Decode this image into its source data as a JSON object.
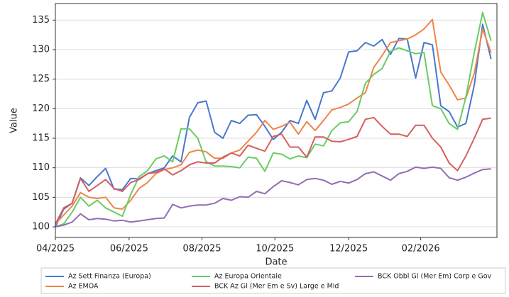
{
  "chart_data": {
    "type": "line",
    "xlabel": "Date",
    "ylabel": "Value",
    "x": [
      0,
      1,
      2,
      3,
      4,
      5,
      6,
      7,
      8,
      9,
      10,
      11,
      12,
      13,
      14,
      15,
      16,
      17,
      18,
      19,
      20,
      21,
      22,
      23,
      24,
      25,
      26,
      27,
      28,
      29,
      30,
      31,
      32,
      33,
      34,
      35,
      36,
      37,
      38,
      39,
      40,
      41,
      42,
      43,
      44,
      45,
      46,
      47,
      48,
      49,
      50,
      51,
      52
    ],
    "xlim": [
      0,
      52.7
    ],
    "xticks": [
      {
        "value": 0,
        "label": "04/2025"
      },
      {
        "value": 8.8,
        "label": "06/2025"
      },
      {
        "value": 17.5,
        "label": "08/2025"
      },
      {
        "value": 26.2,
        "label": "10/2025"
      },
      {
        "value": 35,
        "label": "12/2025"
      },
      {
        "value": 43.6,
        "label": "02/2026"
      }
    ],
    "ylim": [
      98.2,
      137.8
    ],
    "yticks": [
      100,
      105,
      110,
      115,
      120,
      125,
      130,
      135
    ],
    "grid": true,
    "series": [
      {
        "name": "Az Sett Finanza (Europa)",
        "color": "#4878d0",
        "values": [
          100,
          103,
          104,
          108.3,
          107,
          108.5,
          109.9,
          106.4,
          106.3,
          108.2,
          108.1,
          109,
          109.5,
          110,
          112,
          111,
          118.5,
          121,
          121.3,
          116,
          115,
          118,
          117.5,
          118.9,
          119,
          117,
          114.8,
          116,
          118,
          117.5,
          121.4,
          118.2,
          122.7,
          123,
          125.2,
          129.6,
          129.8,
          131.2,
          130.6,
          131.7,
          129.2,
          131.9,
          131.8,
          125.2,
          131.2,
          130.8,
          120.5,
          119.5,
          116.9,
          117.5,
          124,
          134.3,
          128.4
        ]
      },
      {
        "name": "Az EMOA",
        "color": "#ee854a",
        "values": [
          100.5,
          102,
          103.5,
          105.8,
          105,
          104.8,
          105,
          103.2,
          103,
          104.5,
          106.5,
          107.5,
          109,
          109.7,
          110,
          110.5,
          112.6,
          113,
          112.7,
          111.6,
          111.6,
          112.5,
          113,
          114.5,
          116,
          118,
          116.5,
          117,
          117.7,
          115.7,
          117.8,
          116.3,
          118,
          119.8,
          120.2,
          120.8,
          121.8,
          122.7,
          127,
          129,
          131.2,
          131.5,
          131.8,
          132.5,
          133.5,
          135.1,
          126.2,
          124,
          121.5,
          121.8,
          126,
          133.5,
          129.5
        ]
      },
      {
        "name": "Az Europa Orientale",
        "color": "#6acc64",
        "values": [
          100,
          100.5,
          102.5,
          105,
          103.5,
          104.5,
          103.2,
          102.5,
          101.8,
          105.5,
          108.5,
          109.5,
          111.5,
          112,
          111,
          116.6,
          116.6,
          115,
          111,
          110.3,
          110.3,
          110.2,
          110,
          111.8,
          111.6,
          109.4,
          112.5,
          112.3,
          111.5,
          112,
          111.7,
          114,
          113.7,
          116.3,
          117.6,
          117.8,
          119.5,
          124.3,
          125.8,
          126.8,
          129.7,
          130.3,
          129.8,
          129.3,
          129.5,
          120.5,
          120,
          117.5,
          116.5,
          122,
          129.5,
          136.3,
          131.5
        ]
      },
      {
        "name": "BCK Az Gl (Mer Em e Sv) Large e Mid",
        "color": "#d65f5f",
        "values": [
          100.5,
          103.2,
          104,
          108.2,
          106,
          107,
          108,
          106.5,
          106,
          107.5,
          108,
          109,
          109.2,
          109.8,
          108.8,
          109.5,
          110.5,
          111,
          110.8,
          110.8,
          111.8,
          112.5,
          112,
          113.8,
          113.3,
          112.8,
          115.3,
          115.7,
          113.5,
          113.5,
          111.8,
          115.2,
          115.2,
          114.5,
          114.4,
          114.8,
          115.3,
          118.2,
          118.5,
          117,
          115.7,
          115.7,
          115.3,
          117.2,
          117.2,
          115,
          113.5,
          110.8,
          109.5,
          112,
          115,
          118.2,
          118.4
        ]
      },
      {
        "name": "BCK Obbl Gl (Mer Em) Corp e Gov",
        "color": "#956cb4",
        "values": [
          100,
          100.3,
          100.8,
          102.2,
          101.2,
          101.4,
          101.3,
          101,
          101.1,
          100.8,
          101,
          101.2,
          101.4,
          101.5,
          103.8,
          103.2,
          103.5,
          103.7,
          103.7,
          104,
          104.8,
          104.5,
          105.1,
          105,
          106,
          105.6,
          106.8,
          107.8,
          107.5,
          107.1,
          108,
          108.2,
          107.9,
          107.2,
          107.7,
          107.4,
          108,
          109,
          109.3,
          108.6,
          107.9,
          109,
          109.4,
          110.1,
          109.9,
          110.1,
          109.9,
          108.3,
          107.9,
          108.4,
          109.1,
          109.7,
          109.8
        ]
      }
    ]
  }
}
